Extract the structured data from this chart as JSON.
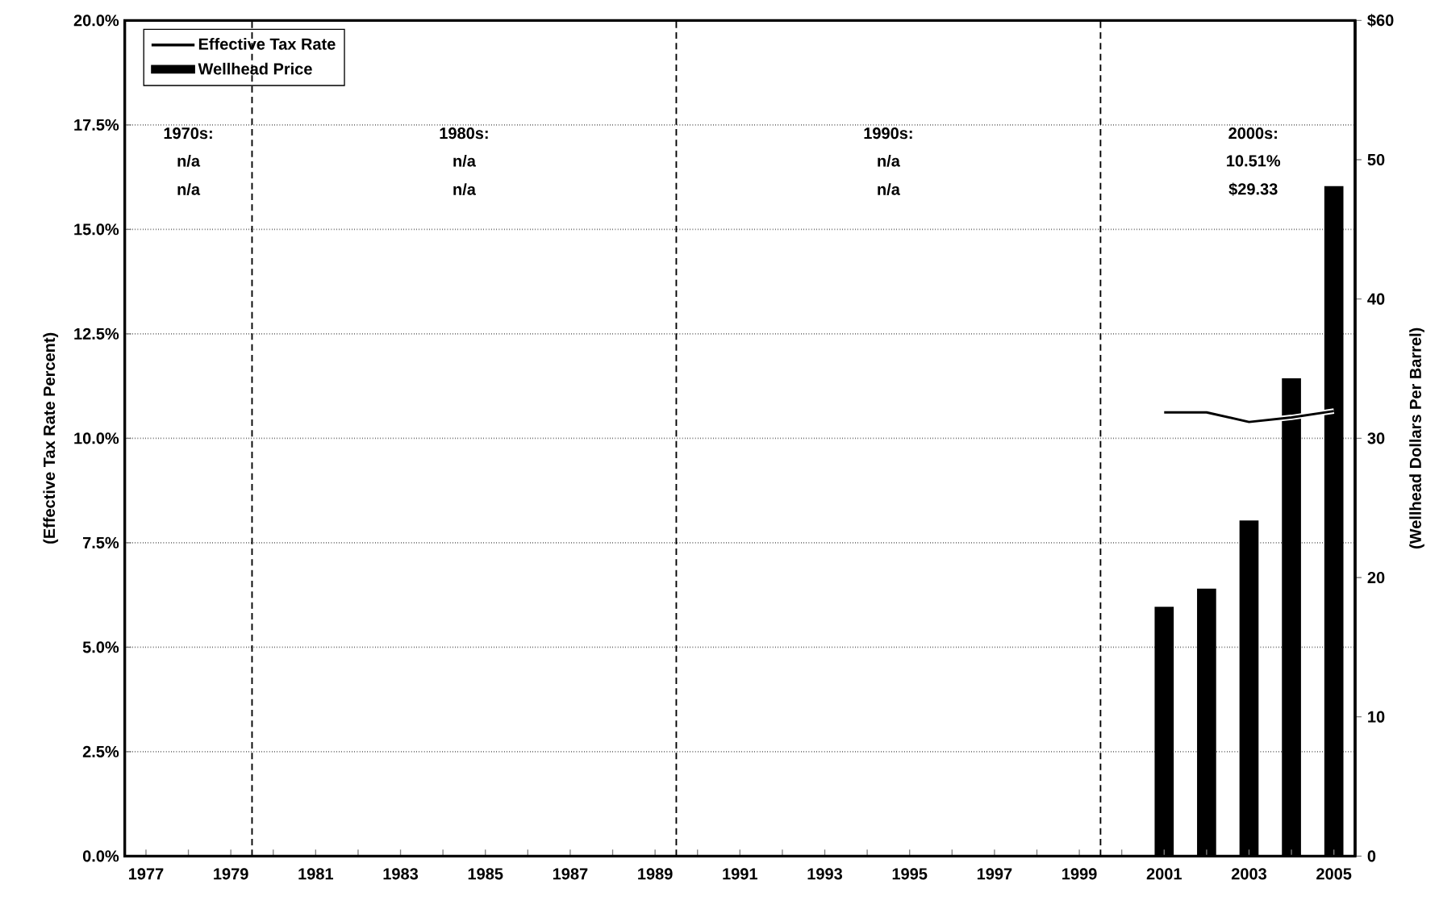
{
  "chart_data": {
    "type": "bar",
    "ylabel": "(Effective Tax Rate Percent)",
    "y2label": "(Wellhead Dollars Per Barrel)",
    "series": [
      {
        "name": "Effective Tax Rate",
        "type": "line",
        "axis": "y",
        "color": "#000000",
        "x": [
          2001,
          2002,
          2003,
          2004,
          2005
        ],
        "values": [
          10.62,
          10.62,
          10.39,
          10.5,
          10.65
        ]
      },
      {
        "name": "Wellhead Price",
        "axis": "y2",
        "color": "#000000",
        "x": [
          2001,
          2002,
          2003,
          2004,
          2005
        ],
        "values": [
          17.9,
          19.2,
          24.1,
          34.3,
          48.1
        ]
      }
    ],
    "xlim": [
      1976.5,
      2005.5
    ],
    "xticks": [
      1977,
      {
        "value": 1978,
        "label": null
      },
      1979,
      {
        "value": 1980,
        "label": null
      },
      1981,
      {
        "value": 1982,
        "label": null
      },
      1983,
      {
        "value": 1984,
        "label": null
      },
      1985,
      {
        "value": 1986,
        "label": null
      },
      1987,
      {
        "value": 1988,
        "label": null
      },
      1989,
      {
        "value": 1990,
        "label": null
      },
      1991,
      {
        "value": 1992,
        "label": null
      },
      1993,
      {
        "value": 1994,
        "label": null
      },
      1995,
      {
        "value": 1996,
        "label": null
      },
      1997,
      {
        "value": 1998,
        "label": null
      },
      1999,
      {
        "value": 2000,
        "label": null
      },
      2001,
      {
        "value": 2002,
        "label": null
      },
      2003,
      {
        "value": 2004,
        "label": null
      },
      2005
    ],
    "ylim": [
      0,
      20
    ],
    "yticks": [
      {
        "value": 0,
        "label": "0.0%"
      },
      {
        "value": 2.5,
        "label": "2.5%"
      },
      {
        "value": 5,
        "label": "5.0%"
      },
      {
        "value": 7.5,
        "label": "7.5%"
      },
      {
        "value": 10,
        "label": "10.0%"
      },
      {
        "value": 12.5,
        "label": "12.5%"
      },
      {
        "value": 15,
        "label": "15.0%"
      },
      {
        "value": 17.5,
        "label": "17.5%"
      },
      {
        "value": 20,
        "label": "20.0%"
      }
    ],
    "y2lim": [
      0,
      60
    ],
    "y2ticks": [
      0,
      10,
      20,
      30,
      40,
      50,
      {
        "value": 60,
        "label": "$60"
      }
    ],
    "grid": "y",
    "legend": "top left",
    "ref_lines": [
      {
        "axis": "x",
        "value": 1979.5,
        "line_style": "dashed"
      },
      {
        "axis": "x",
        "value": 1989.5,
        "line_style": "dashed"
      },
      {
        "axis": "x",
        "value": 1999.5,
        "line_style": "dashed"
      }
    ],
    "annotations": [
      "1970s:",
      "n/a",
      "n/a",
      "1980s:",
      "n/a",
      "n/a",
      "1990s:",
      "n/a",
      "n/a",
      "2000s:",
      "10.51%",
      "$29.33"
    ]
  }
}
